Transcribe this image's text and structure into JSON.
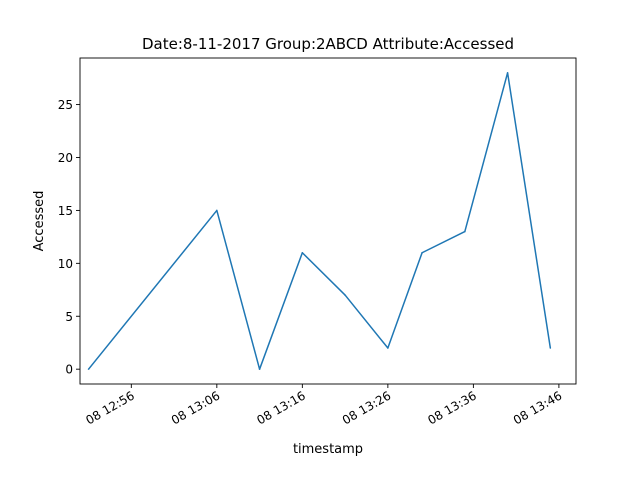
{
  "chart_data": {
    "type": "line",
    "title": "Date:8-11-2017  Group:2ABCD Attribute:Accessed",
    "xlabel": "timestamp",
    "ylabel": "Accessed",
    "grid": false,
    "line_color": "#1f77b4",
    "x_ticks": [
      "08 12:56",
      "08 13:06",
      "08 13:16",
      "08 13:26",
      "08 13:36",
      "08 13:46"
    ],
    "y_ticks": [
      0,
      5,
      10,
      15,
      20,
      25
    ],
    "x_range": [
      "2017-11-08 12:50",
      "2017-11-08 13:48"
    ],
    "ylim": [
      -1.4,
      29.4
    ],
    "series": [
      {
        "x": [
          "2017-11-08 12:51",
          "2017-11-08 13:06",
          "2017-11-08 13:11",
          "2017-11-08 13:16",
          "2017-11-08 13:21",
          "2017-11-08 13:26",
          "2017-11-08 13:30",
          "2017-11-08 13:35",
          "2017-11-08 13:40",
          "2017-11-08 13:45"
        ],
        "values": [
          0,
          15,
          0,
          11,
          7,
          2,
          11,
          13,
          28,
          2
        ]
      }
    ]
  }
}
